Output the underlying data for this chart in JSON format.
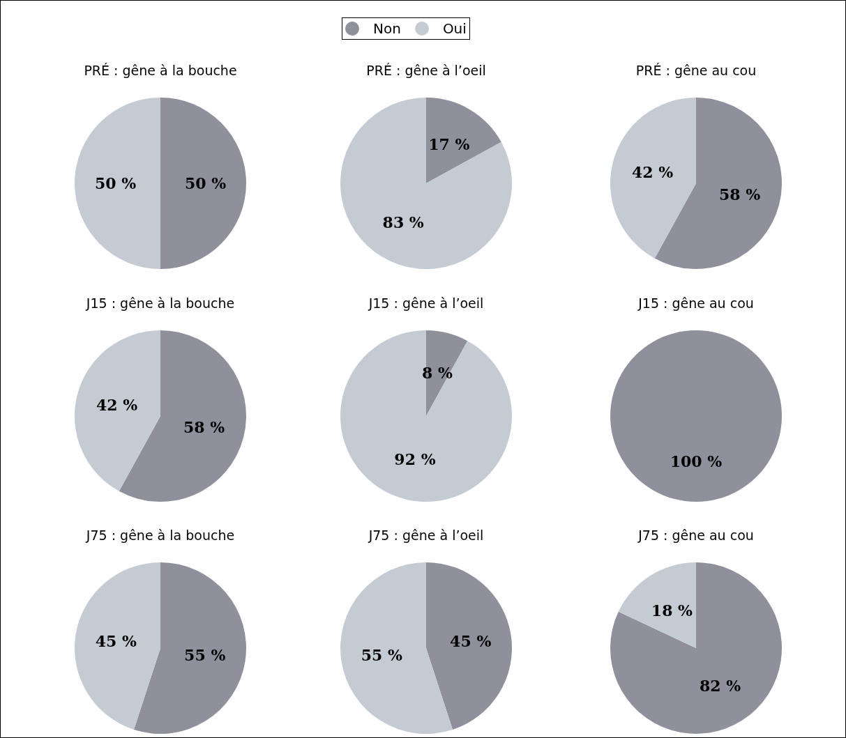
{
  "chart_data": [
    {
      "type": "pie",
      "title": "PRÉ : gêne à la bouche",
      "categories": [
        "Non",
        "Oui"
      ],
      "values": [
        50,
        50
      ],
      "colors": [
        "#8f909c",
        "#c4cbd3"
      ],
      "value_labels": [
        "50 %",
        "50 %"
      ],
      "legend": "top"
    },
    {
      "type": "pie",
      "title": "PRÉ : gêne à l’oeil",
      "categories": [
        null,
        null
      ],
      "values": [
        17,
        83
      ],
      "colors": [
        "#8f909c",
        "#c4cbd3"
      ],
      "value_labels": [
        "17 %",
        "83 %"
      ]
    },
    {
      "type": "pie",
      "title": "PRÉ : gêne au cou",
      "categories": [
        null,
        null
      ],
      "values": [
        58,
        42
      ],
      "colors": [
        "#8f909c",
        "#c4cbd3"
      ],
      "value_labels": [
        "58 %",
        "42 %"
      ]
    },
    {
      "type": "pie",
      "title": "J15 : gêne à la bouche",
      "categories": [
        null,
        null
      ],
      "values": [
        58,
        42
      ],
      "colors": [
        "#8f909c",
        "#c4cbd3"
      ],
      "value_labels": [
        "58 %",
        "42 %"
      ]
    },
    {
      "type": "pie",
      "title": "J15 : gêne à l’oeil",
      "categories": [
        null,
        null
      ],
      "values": [
        8,
        92
      ],
      "colors": [
        "#8f909c",
        "#c4cbd3"
      ],
      "value_labels": [
        "8 %",
        "92 %"
      ]
    },
    {
      "type": "pie",
      "title": "J15 : gêne au cou",
      "categories": [
        null,
        null
      ],
      "values": [
        100,
        0
      ],
      "colors": [
        "#8f909c",
        "#c4cbd3"
      ],
      "value_labels": [
        "100 %",
        null
      ]
    },
    {
      "type": "pie",
      "title": "J75 : gêne à la bouche",
      "categories": [
        null,
        null
      ],
      "values": [
        55,
        45
      ],
      "colors": [
        "#8f909c",
        "#c4cbd3"
      ],
      "value_labels": [
        "55 %",
        "45 %"
      ]
    },
    {
      "type": "pie",
      "title": "J75 : gêne à l’oeil",
      "categories": [
        null,
        null
      ],
      "values": [
        45,
        55
      ],
      "colors": [
        "#8f909c",
        "#c4cbd3"
      ],
      "value_labels": [
        "45 %",
        "55 %"
      ]
    },
    {
      "type": "pie",
      "title": "J75 : gêne au cou",
      "categories": [
        null,
        null
      ],
      "values": [
        82,
        18
      ],
      "colors": [
        "#8f909c",
        "#c4cbd3"
      ],
      "value_labels": [
        "82 %",
        "18 %"
      ]
    }
  ]
}
